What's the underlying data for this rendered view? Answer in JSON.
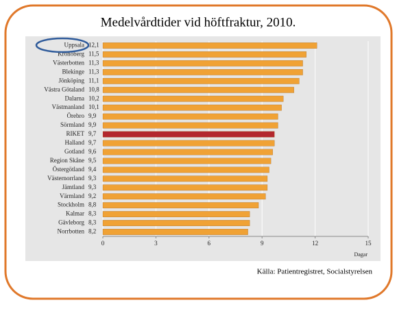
{
  "chart_data": {
    "type": "hbar",
    "title": "Medelvårdtider vid höftfraktur, 2010.",
    "x_label": "Dagar",
    "source": "Källa:  Patientregistret,  Socialstyrelsen",
    "categories": [
      "Uppsala",
      "Kronoberg",
      "Västerbotten",
      "Blekinge",
      "Jönköping",
      "Västra Götaland",
      "Dalarna",
      "Västmanland",
      "Örebro",
      "Sörmland",
      "RIKET",
      "Halland",
      "Gotland",
      "Region Skåne",
      "Östergötland",
      "Västernorrland",
      "Jämtland",
      "Värmland",
      "Stockholm",
      "Kalmar",
      "Gävleborg",
      "Norrbotten"
    ],
    "values": [
      12.1,
      11.5,
      11.3,
      11.3,
      11.1,
      10.8,
      10.2,
      10.1,
      9.9,
      9.9,
      9.7,
      9.7,
      9.6,
      9.5,
      9.4,
      9.3,
      9.3,
      9.2,
      8.8,
      8.3,
      8.3,
      8.2
    ],
    "value_labels": [
      "12,1",
      "11,5",
      "11,3",
      "11,3",
      "11,1",
      "10,8",
      "10,2",
      "10,1",
      "9,9",
      "9,9",
      "9,7",
      "9,7",
      "9,6",
      "9,5",
      "9,4",
      "9,3",
      "9,3",
      "9,2",
      "8,8",
      "8,3",
      "8,3",
      "8,2"
    ],
    "colors": [
      "#f0a235",
      "#f0a235",
      "#f0a235",
      "#f0a235",
      "#f0a235",
      "#f0a235",
      "#f0a235",
      "#f0a235",
      "#f0a235",
      "#f0a235",
      "#b3282d",
      "#f0a235",
      "#f0a235",
      "#f0a235",
      "#f0a235",
      "#f0a235",
      "#f0a235",
      "#f0a235",
      "#f0a235",
      "#f0a235",
      "#f0a235",
      "#f0a235"
    ],
    "xlim": [
      0,
      15
    ],
    "xticks": [
      0,
      3,
      6,
      9,
      12,
      15
    ],
    "grid": true
  }
}
